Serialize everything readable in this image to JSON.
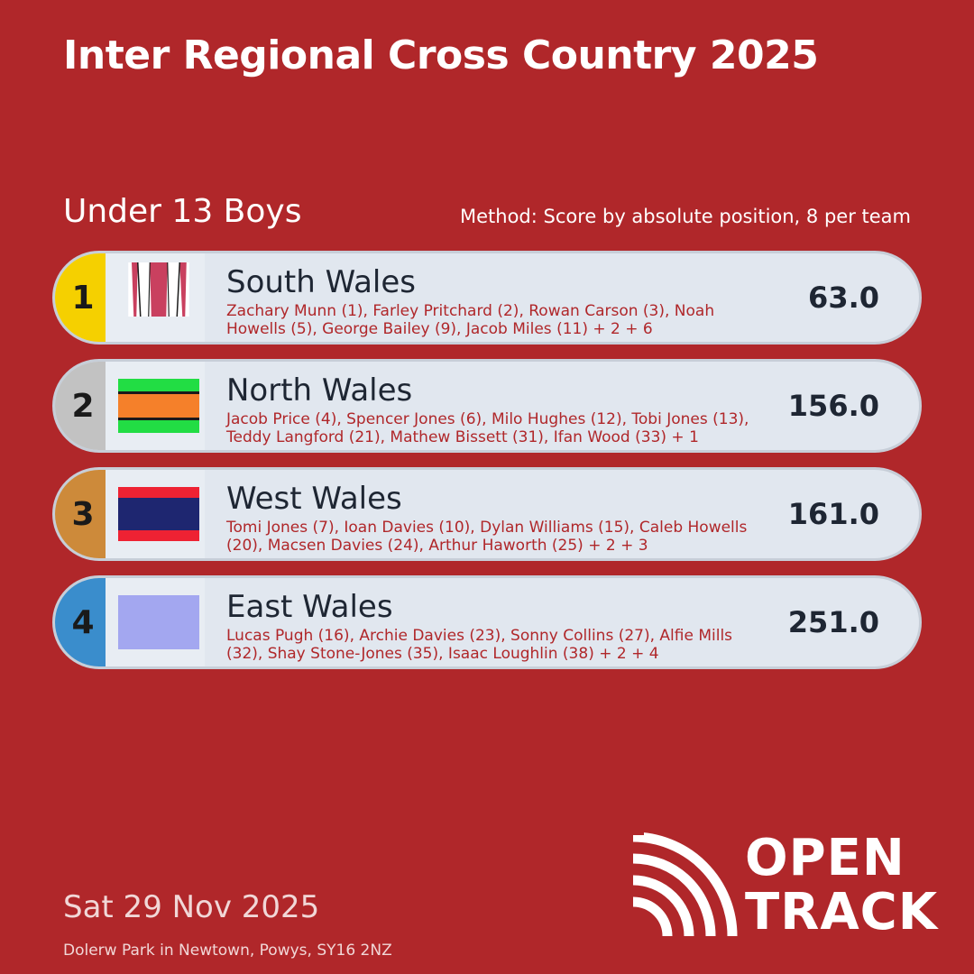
{
  "header": {
    "title": "Inter Regional Cross Country 2025",
    "category": "Under 13 Boys",
    "method": "Method: Score by absolute position, 8 per team"
  },
  "teams": [
    {
      "rank": "1",
      "rank_color": "#f5d000",
      "name": "South Wales",
      "athletes": "Zachary Munn (1), Farley Pritchard (2), Rowan Carson (3), Noah Howells (5), George Bailey (9), Jacob Miles (11) + 2 + 6",
      "score": "63.0",
      "flag_icon": "striped-vest-flag-icon"
    },
    {
      "rank": "2",
      "rank_color": "#c2c2c2",
      "name": "North Wales",
      "athletes": "Jacob Price (4), Spencer Jones (6), Milo Hughes (12), Tobi Jones (13), Teddy Langford (21), Mathew Bissett (31), Ifan Wood (33) + 1",
      "score": "156.0",
      "flag_icon": "green-orange-flag-icon"
    },
    {
      "rank": "3",
      "rank_color": "#cd8a3a",
      "name": "West Wales",
      "athletes": "Tomi Jones (7), Ioan Davies (10), Dylan Williams (15), Caleb Howells (20), Macsen Davies (24), Arthur Haworth (25) + 2 + 3",
      "score": "161.0",
      "flag_icon": "red-navy-flag-icon"
    },
    {
      "rank": "4",
      "rank_color": "#3a8dcc",
      "name": "East Wales",
      "athletes": "Lucas Pugh (16), Archie Davies (23), Sonny Collins (27), Alfie Mills (32), Shay Stone-Jones (35), Isaac Loughlin (38) + 2 + 4",
      "score": "251.0",
      "flag_icon": "lavender-flag-icon"
    }
  ],
  "footer": {
    "date": "Sat 29 Nov 2025",
    "venue": "Dolerw Park in Newtown, Powys, SY16 2NZ",
    "logo_line1": "OPEN",
    "logo_line2": "TRACK"
  },
  "colors": {
    "background": "#b0272a",
    "row_bg": "#e1e7ef",
    "athlete_text": "#b0272a"
  }
}
